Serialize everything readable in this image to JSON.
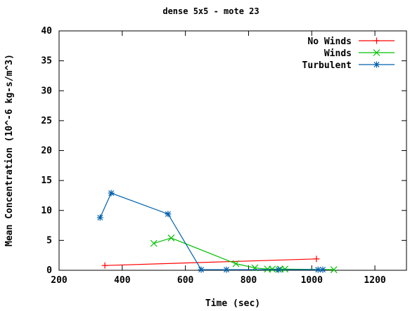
{
  "chart_data": {
    "type": "line",
    "title": "dense 5x5 - mote 23",
    "xlabel": "Time (sec)",
    "ylabel": "Mean Concentration (10^-6 kg-s/m^3)",
    "xlim": [
      200,
      1300
    ],
    "ylim": [
      0,
      40
    ],
    "xticks": [
      200,
      400,
      600,
      800,
      1000,
      1200
    ],
    "yticks": [
      0,
      5,
      10,
      15,
      20,
      25,
      30,
      35,
      40
    ],
    "grid": false,
    "legend_position": "top-right",
    "series": [
      {
        "name": "No Winds",
        "color": "#ff0000",
        "marker": "plus",
        "x": [
          345,
          1015
        ],
        "y": [
          0.8,
          1.9
        ]
      },
      {
        "name": "Winds",
        "color": "#00c000",
        "marker": "cross",
        "x": [
          500,
          555,
          760,
          820,
          860,
          875,
          900,
          915,
          1070
        ],
        "y": [
          4.5,
          5.4,
          1.1,
          0.4,
          0.2,
          0.2,
          0.2,
          0.2,
          0.1
        ]
      },
      {
        "name": "Turbulent",
        "color": "#0060ad",
        "marker": "star",
        "x": [
          330,
          365,
          545,
          650,
          730,
          895,
          1020,
          1035
        ],
        "y": [
          8.8,
          12.9,
          9.4,
          0.1,
          0.1,
          0.1,
          0.1,
          0.1
        ]
      }
    ]
  }
}
